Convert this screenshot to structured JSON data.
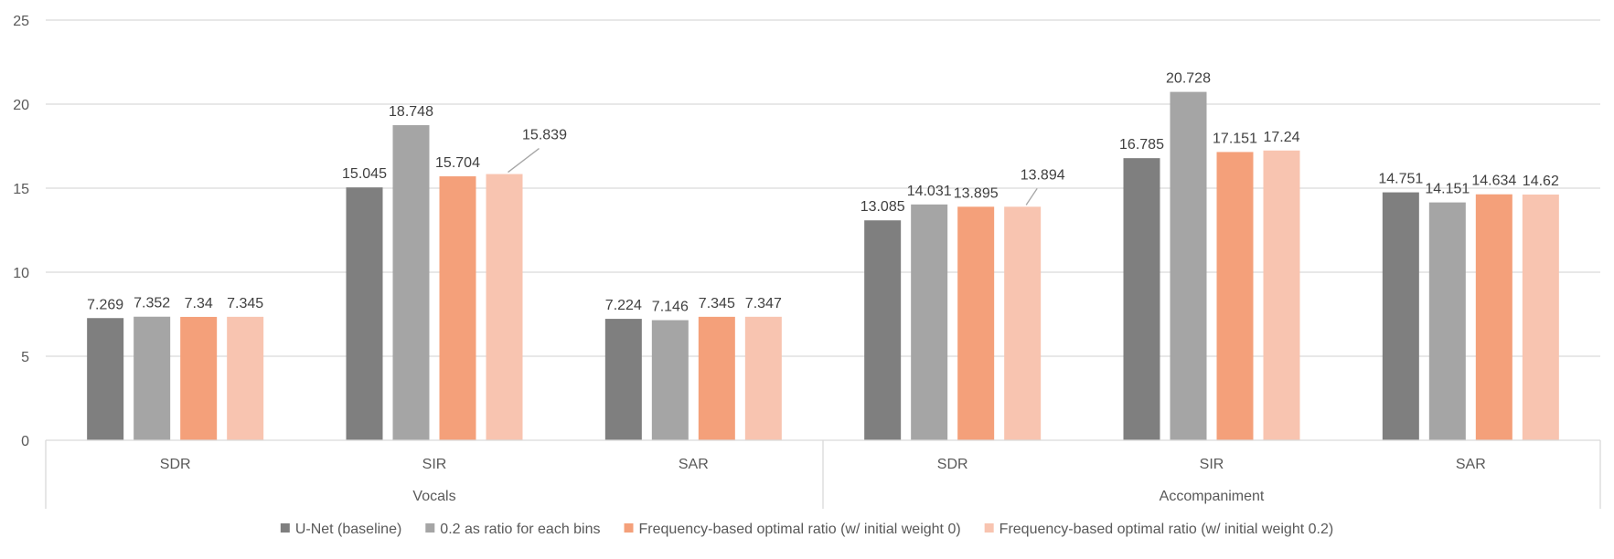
{
  "chart_data": {
    "type": "bar",
    "groups": [
      {
        "label": "Vocals",
        "categories": [
          "SDR",
          "SIR",
          "SAR"
        ]
      },
      {
        "label": "Accompaniment",
        "categories": [
          "SDR",
          "SIR",
          "SAR"
        ]
      }
    ],
    "series": [
      {
        "name": "U-Net (baseline)",
        "color": "#7f7f7f",
        "values": [
          7.269,
          15.045,
          7.224,
          13.085,
          16.785,
          14.751
        ]
      },
      {
        "name": "0.2 as ratio for each bins",
        "color": "#a5a5a5",
        "values": [
          7.352,
          18.748,
          7.146,
          14.031,
          20.728,
          14.151
        ]
      },
      {
        "name": "Frequency-based optimal ratio (w/ initial weight 0)",
        "color": "#f4a07a",
        "values": [
          7.34,
          15.704,
          7.345,
          13.895,
          17.151,
          14.634
        ]
      },
      {
        "name": "Frequency-based optimal ratio (w/ initial weight 0.2)",
        "color": "#f8c4b0",
        "values": [
          7.345,
          15.839,
          7.347,
          13.894,
          17.24,
          14.62
        ]
      }
    ],
    "data_labels": [
      [
        "7.269",
        "15.045",
        "7.224",
        "13.085",
        "16.785",
        "14.751"
      ],
      [
        "7.352",
        "18.748",
        "7.146",
        "14.031",
        "20.728",
        "14.151"
      ],
      [
        "7.34",
        "15.704",
        "7.345",
        "13.895",
        "17.151",
        "14.634"
      ],
      [
        "7.345",
        "15.839",
        "7.347",
        "13.894",
        "17.24",
        "14.62"
      ]
    ],
    "yticks": [
      "0",
      "5",
      "10",
      "15",
      "20",
      "25"
    ],
    "ylim": [
      0,
      25
    ],
    "grid": true,
    "legend_position": "bottom"
  }
}
